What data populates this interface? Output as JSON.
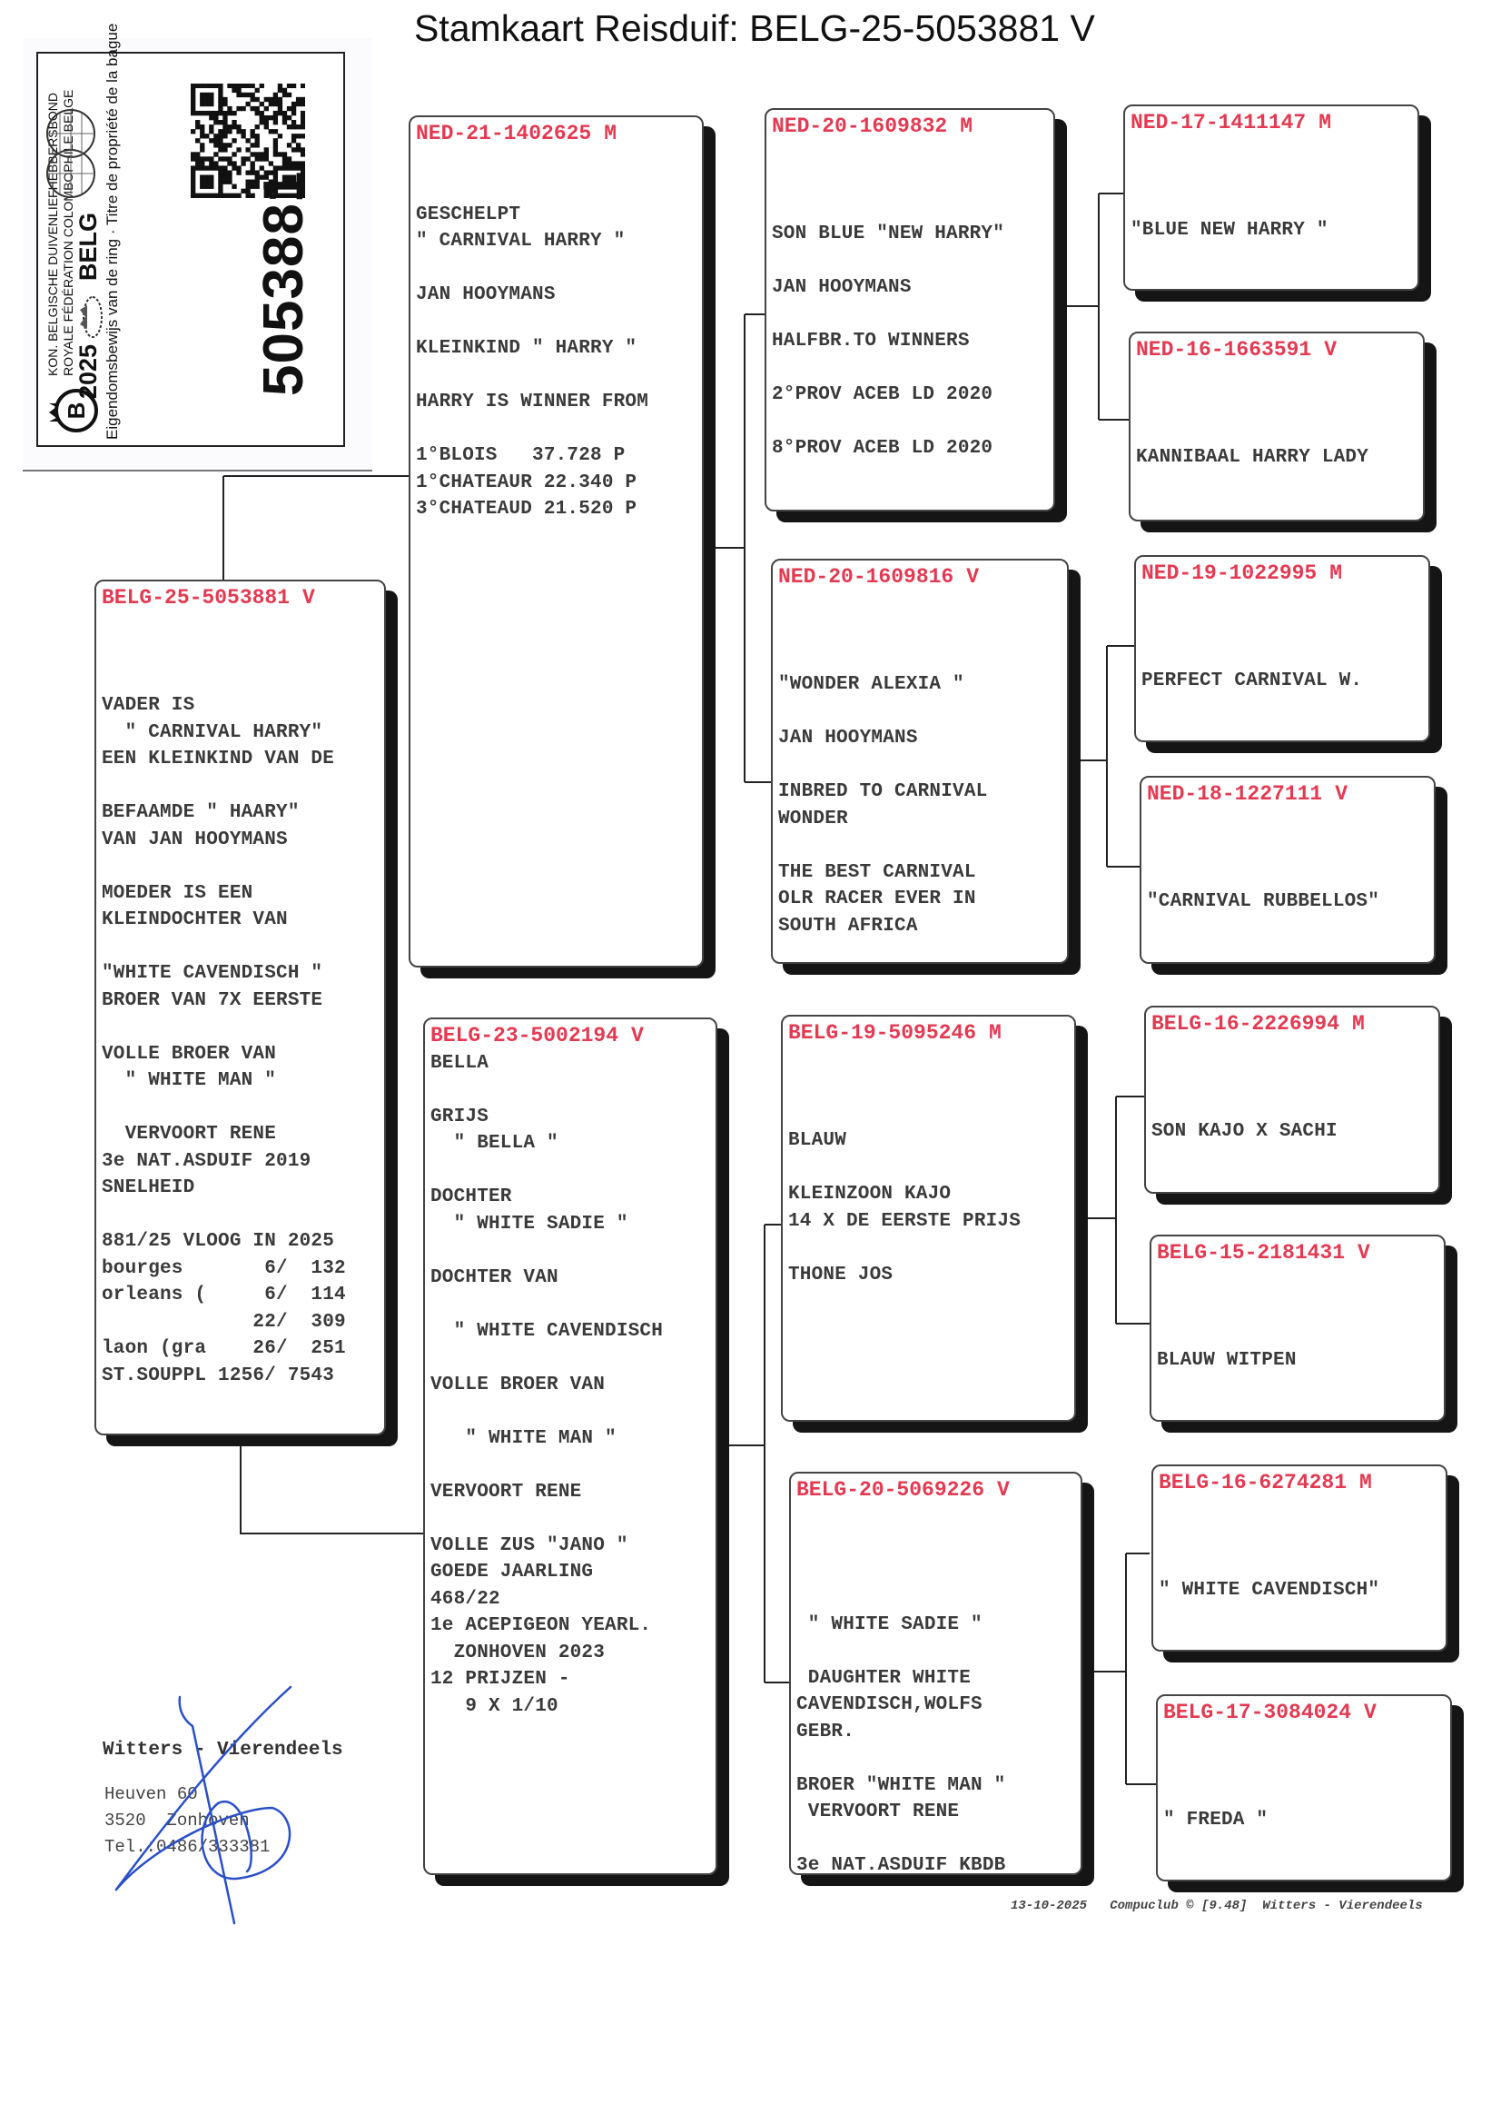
{
  "title": "Stamkaart Reisduif: BELG-25-5053881 V",
  "ring_card": {
    "federation_nl": "KON. BELGISCHE DUIVENLIEFHEBBERSBOND",
    "federation_fr": "ROYALE FÉDÉRATION COLOMBOPHILE BELGE",
    "year": "2025",
    "country": "BELG",
    "ownership_text": "Eigendomsbewijs van de ring · Titre de propriété de la bague",
    "ring_number": "5053881",
    "logo_letter": "B"
  },
  "colors": {
    "ring_header": "#e33a52",
    "text": "#3a3a3a",
    "shadow": "#151515",
    "signature": "#2a4fc8"
  },
  "pigeons": [
    {
      "id": "subject",
      "ring": "BELG-25-5053881",
      "sex": "V",
      "lines": [
        "",
        "",
        "",
        "VADER IS",
        "  \" CARNIVAL HARRY\"",
        "EEN KLEINKIND VAN DE",
        "",
        "BEFAAMDE \" HAARY\"",
        "VAN JAN HOOYMANS",
        "",
        "MOEDER IS EEN",
        "KLEINDOCHTER VAN",
        "",
        "\"WHITE CAVENDISCH \"",
        "BROER VAN 7X EERSTE",
        "",
        "VOLLE BROER VAN",
        "  \" WHITE MAN \"",
        "",
        "  VERVOORT RENE",
        "3e NAT.ASDUIF 2019",
        "SNELHEID",
        "",
        "881/25 VLOOG IN 2025",
        "bourges       6/  132",
        "orleans (     6/  114",
        "             22/  309",
        "laon (gra    26/  251",
        "ST.SOUPPL 1256/ 7543"
      ]
    },
    {
      "id": "sire",
      "ring": "NED-21-1402625",
      "sex": "M",
      "lines": [
        "",
        "",
        "GESCHELPT",
        "\" CARNIVAL HARRY \"",
        "",
        "JAN HOOYMANS",
        "",
        "KLEINKIND \" HARRY \"",
        "",
        "HARRY IS WINNER FROM",
        "",
        "1°BLOIS   37.728 P",
        "1°CHATEAUR 22.340 P",
        "3°CHATEAUD 21.520 P"
      ]
    },
    {
      "id": "dam",
      "ring": "BELG-23-5002194",
      "sex": "V",
      "lines": [
        "BELLA",
        "",
        "GRIJS",
        "  \" BELLA \"",
        "",
        "DOCHTER",
        "  \" WHITE SADIE \"",
        "",
        "DOCHTER VAN",
        "",
        "  \" WHITE CAVENDISCH",
        "",
        "VOLLE BROER VAN",
        "",
        "   \" WHITE MAN \"",
        "",
        "VERVOORT RENE",
        "",
        "VOLLE ZUS \"JANO \"",
        "GOEDE JAARLING",
        "468/22",
        "1e ACEPIGEON YEARL.",
        "  ZONHOVEN 2023",
        "12 PRIJZEN -",
        "   9 X 1/10"
      ]
    },
    {
      "id": "ss",
      "ring": "NED-20-1609832",
      "sex": "M",
      "lines": [
        "",
        "",
        "",
        "SON BLUE \"NEW HARRY\"",
        "",
        "JAN HOOYMANS",
        "",
        "HALFBR.TO WINNERS",
        "",
        "2°PROV ACEB LD 2020",
        "",
        "8°PROV ACEB LD 2020"
      ]
    },
    {
      "id": "sd",
      "ring": "NED-20-1609816",
      "sex": "V",
      "lines": [
        "",
        "",
        "",
        "\"WONDER ALEXIA \"",
        "",
        "JAN HOOYMANS",
        "",
        "INBRED TO CARNIVAL",
        "WONDER",
        "",
        "THE BEST CARNIVAL",
        "OLR RACER EVER IN",
        "SOUTH AFRICA"
      ]
    },
    {
      "id": "ds",
      "ring": "BELG-19-5095246",
      "sex": "M",
      "lines": [
        "",
        "",
        "",
        "BLAUW",
        "",
        "KLEINZOON KAJO",
        "14 X DE EERSTE PRIJS",
        "",
        "THONE JOS"
      ]
    },
    {
      "id": "dd",
      "ring": "BELG-20-5069226",
      "sex": "V",
      "lines": [
        "",
        "",
        "",
        "",
        " \" WHITE SADIE \"",
        "",
        " DAUGHTER WHITE",
        "CAVENDISCH,WOLFS",
        "GEBR.",
        "",
        "BROER \"WHITE MAN \"",
        " VERVOORT RENE",
        "",
        "3e NAT.ASDUIF KBDB"
      ]
    },
    {
      "id": "sss",
      "ring": "NED-17-1411147",
      "sex": "M",
      "lines": [
        "",
        "",
        "",
        "\"BLUE NEW HARRY \""
      ]
    },
    {
      "id": "ssd",
      "ring": "NED-16-1663591",
      "sex": "V",
      "lines": [
        "",
        "",
        "",
        "KANNIBAAL HARRY LADY"
      ]
    },
    {
      "id": "sds",
      "ring": "NED-19-1022995",
      "sex": "M",
      "lines": [
        "",
        "",
        "",
        "PERFECT CARNIVAL W."
      ]
    },
    {
      "id": "sdd",
      "ring": "NED-18-1227111",
      "sex": "V",
      "lines": [
        "",
        "",
        "",
        "\"CARNIVAL RUBBELLOS\""
      ]
    },
    {
      "id": "dss",
      "ring": "BELG-16-2226994",
      "sex": "M",
      "lines": [
        "",
        "",
        "",
        "SON KAJO X SACHI"
      ]
    },
    {
      "id": "dsd",
      "ring": "BELG-15-2181431",
      "sex": "V",
      "lines": [
        "",
        "",
        "",
        "BLAUW WITPEN"
      ]
    },
    {
      "id": "dds",
      "ring": "BELG-16-6274281",
      "sex": "M",
      "lines": [
        "",
        "",
        "",
        "\" WHITE CAVENDISCH\""
      ]
    },
    {
      "id": "ddd",
      "ring": "BELG-17-3084024",
      "sex": "V",
      "lines": [
        "",
        "",
        "",
        "\" FREDA \""
      ]
    }
  ],
  "breeder": {
    "name": "Witters - Vierendeels",
    "street": "Heuven 60",
    "city": "3520  Zonhoven",
    "phone": "Tel.:0486/333381"
  },
  "footer": {
    "date": "13-10-2025",
    "software": "Compuclub © [9.48]",
    "owner": "Witters - Vierendeels"
  }
}
